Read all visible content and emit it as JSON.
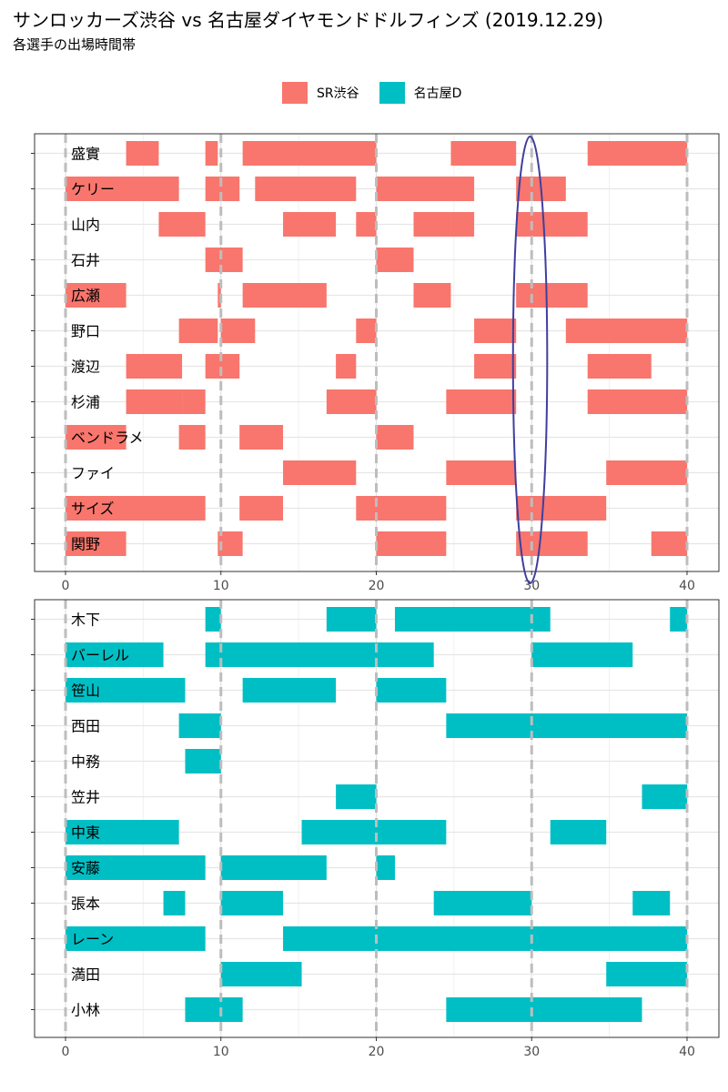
{
  "title": "サンロッカーズ渋谷 vs 名古屋ダイヤモンドドルフィンズ (2019.12.29)",
  "subtitle": "各選手の出場時間帯",
  "legend": [
    {
      "label": "SR渋谷",
      "color": "#F8766D"
    },
    {
      "label": "名古屋D",
      "color": "#00BFC4"
    }
  ],
  "chart_data": [
    {
      "type": "bar",
      "team": "SR渋谷",
      "color": "#F8766D",
      "xlim": [
        0,
        40
      ],
      "x_ticks": [
        0,
        10,
        20,
        30,
        40
      ],
      "quarter_lines": [
        0,
        10,
        20,
        30,
        40
      ],
      "grid": true,
      "annotation": {
        "shape": "ellipse",
        "color": "#3F3F9F",
        "x_center": 30,
        "x_span": [
          28.8,
          31.0
        ]
      },
      "players": [
        {
          "name": "盛實",
          "intervals": [
            [
              3.9,
              6.0
            ],
            [
              9.0,
              9.8
            ],
            [
              11.4,
              20.0
            ],
            [
              24.8,
              29.0
            ],
            [
              33.6,
              40.0
            ]
          ]
        },
        {
          "name": "ケリー",
          "intervals": [
            [
              0,
              7.3
            ],
            [
              9.0,
              11.2
            ],
            [
              12.2,
              18.7
            ],
            [
              20.0,
              26.3
            ],
            [
              29.0,
              32.2
            ]
          ]
        },
        {
          "name": "山内",
          "intervals": [
            [
              6.0,
              9.0
            ],
            [
              14.0,
              17.4
            ],
            [
              18.7,
              20.0
            ],
            [
              24.8,
              26.3
            ],
            [
              22.4,
              24.8
            ],
            [
              29.0,
              33.6
            ]
          ]
        },
        {
          "name": "石井",
          "intervals": [
            [
              9.0,
              11.4
            ],
            [
              20.0,
              22.4
            ]
          ]
        },
        {
          "name": "広瀬",
          "intervals": [
            [
              0,
              3.9
            ],
            [
              9.8,
              10.0
            ],
            [
              11.4,
              16.8
            ],
            [
              22.4,
              24.8
            ],
            [
              29.0,
              33.6
            ]
          ]
        },
        {
          "name": "野口",
          "intervals": [
            [
              7.3,
              9.8
            ],
            [
              10.0,
              12.2
            ],
            [
              18.7,
              20.0
            ],
            [
              26.3,
              29.0
            ],
            [
              32.2,
              40.0
            ]
          ]
        },
        {
          "name": "渡辺",
          "intervals": [
            [
              3.9,
              7.5
            ],
            [
              9.0,
              11.2
            ],
            [
              17.4,
              18.7
            ],
            [
              26.3,
              29.0
            ],
            [
              33.6,
              37.7
            ]
          ]
        },
        {
          "name": "杉浦",
          "intervals": [
            [
              3.9,
              7.5
            ],
            [
              7.5,
              9.0
            ],
            [
              16.8,
              20.0
            ],
            [
              24.5,
              29.0
            ],
            [
              33.6,
              40.0
            ]
          ]
        },
        {
          "name": "ベンドラメ",
          "intervals": [
            [
              0,
              3.9
            ],
            [
              7.3,
              9.0
            ],
            [
              11.2,
              14.0
            ],
            [
              20.0,
              22.4
            ]
          ]
        },
        {
          "name": "ファイ",
          "intervals": [
            [
              14.0,
              18.7
            ],
            [
              24.5,
              29.0
            ],
            [
              34.8,
              40.0
            ]
          ]
        },
        {
          "name": "サイズ",
          "intervals": [
            [
              0,
              9.0
            ],
            [
              11.2,
              14.0
            ],
            [
              18.7,
              24.5
            ],
            [
              29.0,
              34.8
            ]
          ]
        },
        {
          "name": "関野",
          "intervals": [
            [
              0,
              3.9
            ],
            [
              9.8,
              11.4
            ],
            [
              20.0,
              24.5
            ],
            [
              29.0,
              33.6
            ],
            [
              37.7,
              40.0
            ]
          ]
        }
      ]
    },
    {
      "type": "bar",
      "team": "名古屋D",
      "color": "#00BFC4",
      "xlim": [
        0,
        40
      ],
      "x_ticks": [
        0,
        10,
        20,
        30,
        40
      ],
      "quarter_lines": [
        0,
        10,
        20,
        30,
        40
      ],
      "grid": true,
      "players": [
        {
          "name": "木下",
          "intervals": [
            [
              9.0,
              10.0
            ],
            [
              16.8,
              20.0
            ],
            [
              21.2,
              31.2
            ],
            [
              38.9,
              40.0
            ]
          ]
        },
        {
          "name": "バーレル",
          "intervals": [
            [
              0,
              6.3
            ],
            [
              9.0,
              23.7
            ],
            [
              30.0,
              36.5
            ]
          ]
        },
        {
          "name": "笹山",
          "intervals": [
            [
              0,
              7.7
            ],
            [
              11.4,
              17.4
            ],
            [
              20.0,
              24.5
            ]
          ]
        },
        {
          "name": "西田",
          "intervals": [
            [
              7.3,
              10.0
            ],
            [
              24.5,
              40.0
            ]
          ]
        },
        {
          "name": "中務",
          "intervals": [
            [
              7.7,
              10.0
            ]
          ]
        },
        {
          "name": "笠井",
          "intervals": [
            [
              17.4,
              20.0
            ],
            [
              37.1,
              40.0
            ]
          ]
        },
        {
          "name": "中東",
          "intervals": [
            [
              0,
              7.3
            ],
            [
              15.2,
              24.5
            ],
            [
              31.2,
              34.8
            ]
          ]
        },
        {
          "name": "安藤",
          "intervals": [
            [
              0,
              9.0
            ],
            [
              10.0,
              16.8
            ],
            [
              20.0,
              21.2
            ]
          ]
        },
        {
          "name": "張本",
          "intervals": [
            [
              6.3,
              7.7
            ],
            [
              10.0,
              14.0
            ],
            [
              23.7,
              30.0
            ],
            [
              36.5,
              38.9
            ]
          ]
        },
        {
          "name": "レーン",
          "intervals": [
            [
              0,
              9.0
            ],
            [
              14.0,
              40.0
            ]
          ]
        },
        {
          "name": "満田",
          "intervals": [
            [
              10.0,
              15.2
            ],
            [
              34.8,
              40.0
            ]
          ]
        },
        {
          "name": "小林",
          "intervals": [
            [
              7.7,
              11.4
            ],
            [
              24.5,
              37.1
            ]
          ]
        }
      ]
    }
  ]
}
